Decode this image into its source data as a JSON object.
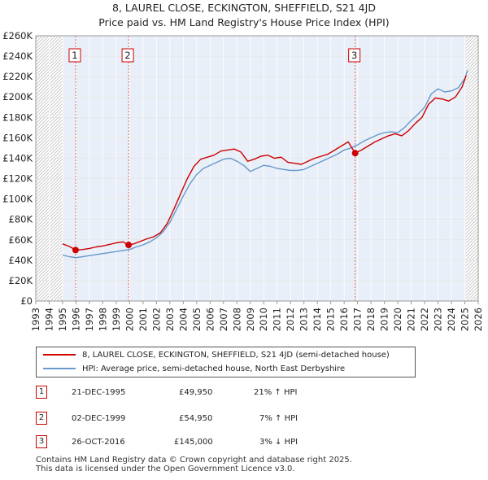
{
  "chart_data": {
    "type": "line",
    "title": "8, LAUREL CLOSE, ECKINGTON, SHEFFIELD, S21 4JD",
    "subtitle": "Price paid vs. HM Land Registry's House Price Index (HPI)",
    "xlabel": "",
    "ylabel": "",
    "xlim": [
      1993,
      2026
    ],
    "ylim": [
      0,
      260000
    ],
    "grid": true,
    "x_ticks": [
      "1993",
      "1994",
      "1995",
      "1996",
      "1997",
      "1998",
      "1999",
      "2000",
      "2001",
      "2002",
      "2003",
      "2004",
      "2005",
      "2006",
      "2007",
      "2008",
      "2009",
      "2010",
      "2011",
      "2012",
      "2013",
      "2014",
      "2015",
      "2016",
      "2017",
      "2018",
      "2019",
      "2020",
      "2021",
      "2022",
      "2023",
      "2024",
      "2025",
      "2026"
    ],
    "y_ticks": [
      {
        "value": 0,
        "label": "£0"
      },
      {
        "value": 20000,
        "label": "£20K"
      },
      {
        "value": 40000,
        "label": "£40K"
      },
      {
        "value": 60000,
        "label": "£60K"
      },
      {
        "value": 80000,
        "label": "£80K"
      },
      {
        "value": 100000,
        "label": "£100K"
      },
      {
        "value": 120000,
        "label": "£120K"
      },
      {
        "value": 140000,
        "label": "£140K"
      },
      {
        "value": 160000,
        "label": "£160K"
      },
      {
        "value": 180000,
        "label": "£180K"
      },
      {
        "value": 200000,
        "label": "£200K"
      },
      {
        "value": 220000,
        "label": "£220K"
      },
      {
        "value": 240000,
        "label": "£240K"
      },
      {
        "value": 260000,
        "label": "£260K"
      }
    ],
    "hatched_ranges": [
      [
        1993,
        1995.0
      ],
      [
        2025.1,
        2026
      ]
    ],
    "shaded_ranges": [
      [
        1995.0,
        2025.1
      ]
    ],
    "series": [
      {
        "name": "8, LAUREL CLOSE, ECKINGTON, SHEFFIELD, S21 4JD (semi-detached house)",
        "color": "#cc0000",
        "x": [
          1995.0,
          1995.5,
          1995.97,
          1996.5,
          1997.0,
          1997.5,
          1998.0,
          1998.5,
          1999.0,
          1999.5,
          1999.92,
          2000.3,
          2000.8,
          2001.3,
          2001.8,
          2002.3,
          2002.8,
          2003.3,
          2003.8,
          2004.3,
          2004.8,
          2005.3,
          2005.8,
          2006.3,
          2006.8,
          2007.3,
          2007.8,
          2008.3,
          2008.8,
          2009.3,
          2009.8,
          2010.3,
          2010.8,
          2011.3,
          2011.8,
          2012.3,
          2012.8,
          2013.3,
          2013.8,
          2014.3,
          2014.8,
          2015.3,
          2015.8,
          2016.3,
          2016.82,
          2017.3,
          2017.8,
          2018.3,
          2018.8,
          2019.3,
          2019.8,
          2020.3,
          2020.8,
          2021.3,
          2021.8,
          2022.3,
          2022.8,
          2023.3,
          2023.8,
          2024.3,
          2024.8,
          2025.1
        ],
        "values": [
          56000,
          53500,
          49950,
          50500,
          51500,
          53000,
          54000,
          55500,
          57000,
          58000,
          54950,
          56000,
          58500,
          61000,
          63000,
          67000,
          76000,
          90000,
          105000,
          120000,
          132000,
          139000,
          141000,
          143000,
          147000,
          148000,
          149000,
          146000,
          137000,
          139000,
          142000,
          143000,
          140000,
          141000,
          136000,
          135000,
          134000,
          137000,
          140000,
          142000,
          144000,
          148000,
          152000,
          156000,
          145000,
          148000,
          152000,
          156000,
          159000,
          162000,
          164000,
          162000,
          167000,
          174000,
          180000,
          193000,
          199000,
          198000,
          196000,
          200000,
          210000,
          221000
        ]
      },
      {
        "name": "HPI: Average price, semi-detached house, North East Derbyshire",
        "color": "#6699cc",
        "x": [
          1995.0,
          1995.5,
          1996.0,
          1996.5,
          1997.0,
          1997.5,
          1998.0,
          1998.5,
          1999.0,
          1999.5,
          2000.0,
          2000.5,
          2001.0,
          2001.5,
          2002.0,
          2002.5,
          2003.0,
          2003.5,
          2004.0,
          2004.5,
          2005.0,
          2005.5,
          2006.0,
          2006.5,
          2007.0,
          2007.5,
          2008.0,
          2008.5,
          2009.0,
          2009.5,
          2010.0,
          2010.5,
          2011.0,
          2011.5,
          2012.0,
          2012.5,
          2013.0,
          2013.5,
          2014.0,
          2014.5,
          2015.0,
          2015.5,
          2016.0,
          2016.5,
          2017.0,
          2017.5,
          2018.0,
          2018.5,
          2019.0,
          2019.5,
          2020.0,
          2020.5,
          2021.0,
          2021.5,
          2022.0,
          2022.5,
          2023.0,
          2023.5,
          2024.0,
          2024.5,
          2025.0,
          2025.2
        ],
        "values": [
          45000,
          43500,
          42500,
          43500,
          44500,
          45500,
          46500,
          47500,
          48500,
          49500,
          50500,
          53000,
          55000,
          58000,
          62000,
          68000,
          77000,
          90000,
          103000,
          115000,
          124000,
          130000,
          133000,
          136000,
          139000,
          140000,
          137000,
          133000,
          127000,
          130000,
          133000,
          132000,
          130000,
          129000,
          128000,
          128000,
          129000,
          132000,
          135000,
          138000,
          141000,
          144000,
          148000,
          150000,
          153000,
          157000,
          160000,
          163000,
          165000,
          166000,
          165000,
          170000,
          177000,
          183000,
          190000,
          203000,
          208000,
          205000,
          206000,
          209000,
          218000,
          226000
        ]
      }
    ],
    "transactions": [
      {
        "label": "1",
        "x": 1995.97,
        "value": 49950
      },
      {
        "label": "2",
        "x": 1999.92,
        "value": 54950
      },
      {
        "label": "3",
        "x": 2016.82,
        "value": 145000
      }
    ]
  },
  "legend": {
    "property_label": "8, LAUREL CLOSE, ECKINGTON, SHEFFIELD, S21 4JD (semi-detached house)",
    "hpi_label": "HPI: Average price, semi-detached house, North East Derbyshire",
    "property_color": "#cc0000",
    "hpi_color": "#6699cc"
  },
  "transactions_table": [
    {
      "num": "1",
      "date": "21-DEC-1995",
      "price": "£49,950",
      "hpi": "21% ↑ HPI"
    },
    {
      "num": "2",
      "date": "02-DEC-1999",
      "price": "£54,950",
      "hpi": "7% ↑ HPI"
    },
    {
      "num": "3",
      "date": "26-OCT-2016",
      "price": "£145,000",
      "hpi": "3% ↓ HPI"
    }
  ],
  "footer": {
    "line1": "Contains HM Land Registry data © Crown copyright and database right 2025.",
    "line2": "This data is licensed under the Open Government Licence v3.0."
  }
}
